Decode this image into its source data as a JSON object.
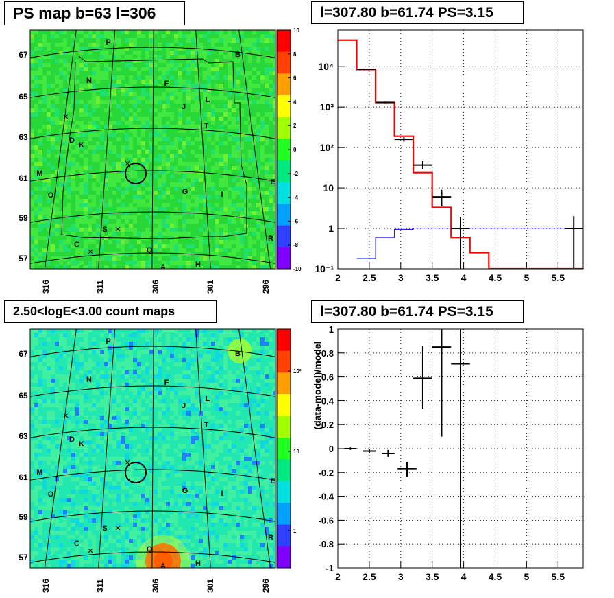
{
  "panels": {
    "ps_map_title": "PS map b=63 l=306",
    "count_map_title": "2.50<logE<3.00 count maps",
    "spectrum_title": "l=307.80 b=61.74 PS=3.15",
    "residual_title": "l=307.80 b=61.74 PS=3.15"
  },
  "chart_data": [
    {
      "id": "ps_map",
      "type": "heatmap",
      "title": "PS map b=63 l=306",
      "colorscale": "rainbow (purple-blue-cyan-green-yellow-orange-red)",
      "color_range": [
        -10,
        10
      ],
      "colorbar_ticks": [
        "10",
        "8",
        "6",
        "4",
        "2",
        "0",
        "-2",
        "-4",
        "-6",
        "-8",
        "-10"
      ],
      "x_ticks": [
        "316",
        "311",
        "306",
        "301",
        "296"
      ],
      "y_ticks": [
        "67",
        "65",
        "63",
        "61",
        "59",
        "57"
      ],
      "markers": [
        "P",
        "B",
        "N",
        "F",
        "J",
        "L",
        "T",
        "D",
        "K",
        "M",
        "O",
        "G",
        "I",
        "E",
        "S",
        "C",
        "Q",
        "R",
        "A",
        "H"
      ],
      "circle_center": {
        "l": 307.8,
        "b": 61.74
      },
      "dominant_value": 0
    },
    {
      "id": "count_map",
      "type": "heatmap",
      "title": "2.50<logE<3.00 count maps",
      "colorscale": "rainbow, log",
      "colorbar_ticks": [
        "10²",
        "10",
        "1"
      ],
      "x_ticks": [
        "316",
        "311",
        "306",
        "301",
        "296"
      ],
      "y_ticks": [
        "67",
        "65",
        "63",
        "61",
        "59",
        "57"
      ],
      "markers": [
        "P",
        "B",
        "N",
        "F",
        "J",
        "L",
        "T",
        "D",
        "K",
        "M",
        "O",
        "G",
        "I",
        "E",
        "S",
        "C",
        "Q",
        "R",
        "A",
        "H"
      ],
      "circle_center": {
        "l": 307.8,
        "b": 61.74
      }
    },
    {
      "id": "spectrum",
      "type": "line",
      "title": "l=307.80 b=61.74 PS=3.15",
      "xlim": [
        2,
        5.9
      ],
      "ylim": [
        0.1,
        80000
      ],
      "yscale": "log",
      "x_ticks": [
        "2",
        "2.5",
        "3",
        "3.5",
        "4",
        "4.5",
        "5",
        "5.5"
      ],
      "y_ticks": [
        "10⁴",
        "10³",
        "10²",
        "10",
        "1",
        "10⁻¹"
      ],
      "grid": true,
      "model_total": {
        "color": "#ff0000",
        "edges": [
          2.0,
          2.3,
          2.6,
          2.9,
          3.2,
          3.5,
          3.8,
          4.1,
          4.4,
          5.9
        ],
        "values": [
          45000,
          8500,
          1300,
          190,
          24,
          3.3,
          0.6,
          0.25,
          0.1
        ]
      },
      "model_source": {
        "color": "#0000ff",
        "edges": [
          2.3,
          2.6,
          2.9,
          3.2,
          5.9
        ],
        "values": [
          0.18,
          0.6,
          0.95,
          1.02
        ]
      },
      "data_points": [
        {
          "x": 2.45,
          "xerr": 0.15,
          "y": 8600,
          "ylo": 8400,
          "yhi": 8800
        },
        {
          "x": 2.75,
          "xerr": 0.15,
          "y": 1300,
          "ylo": 1240,
          "yhi": 1360
        },
        {
          "x": 3.05,
          "xerr": 0.15,
          "y": 160,
          "ylo": 140,
          "yhi": 180
        },
        {
          "x": 3.35,
          "xerr": 0.15,
          "y": 37,
          "ylo": 29,
          "yhi": 46
        },
        {
          "x": 3.65,
          "xerr": 0.15,
          "y": 6,
          "ylo": 3.5,
          "yhi": 9
        },
        {
          "x": 3.95,
          "xerr": 0.15,
          "y": 1,
          "ylo": 0.1,
          "yhi": 1.9
        },
        {
          "x": 5.75,
          "xerr": 0.15,
          "y": 1,
          "ylo": 0.1,
          "yhi": 2
        }
      ]
    },
    {
      "id": "residual",
      "type": "scatter",
      "title": "l=307.80 b=61.74 PS=3.15",
      "ylabel": "(data-model)/model",
      "xlim": [
        2,
        5.9
      ],
      "ylim": [
        -1,
        1
      ],
      "x_ticks": [
        "2",
        "2.5",
        "3",
        "3.5",
        "4",
        "4.5",
        "5",
        "5.5"
      ],
      "y_ticks": [
        "1",
        "0.8",
        "0.6",
        "0.4",
        "0.2",
        "0",
        "-0.2",
        "-0.4",
        "-0.6",
        "-0.8",
        "-1"
      ],
      "grid": true,
      "points": [
        {
          "x": 2.2,
          "xerr": 0.1,
          "y": 0.0,
          "ylo": -0.01,
          "yhi": 0.01
        },
        {
          "x": 2.5,
          "xerr": 0.1,
          "y": -0.02,
          "ylo": -0.035,
          "yhi": -0.005
        },
        {
          "x": 2.8,
          "xerr": 0.1,
          "y": -0.04,
          "ylo": -0.07,
          "yhi": -0.01
        },
        {
          "x": 3.1,
          "xerr": 0.15,
          "y": -0.17,
          "ylo": -0.24,
          "yhi": -0.11
        },
        {
          "x": 3.35,
          "xerr": 0.15,
          "y": 0.59,
          "ylo": 0.33,
          "yhi": 0.86
        },
        {
          "x": 3.65,
          "xerr": 0.15,
          "y": 0.85,
          "ylo": 0.1,
          "yhi": 1.0
        },
        {
          "x": 3.95,
          "xerr": 0.15,
          "y": 0.71,
          "ylo": -1.0,
          "yhi": 1.0
        }
      ]
    }
  ]
}
